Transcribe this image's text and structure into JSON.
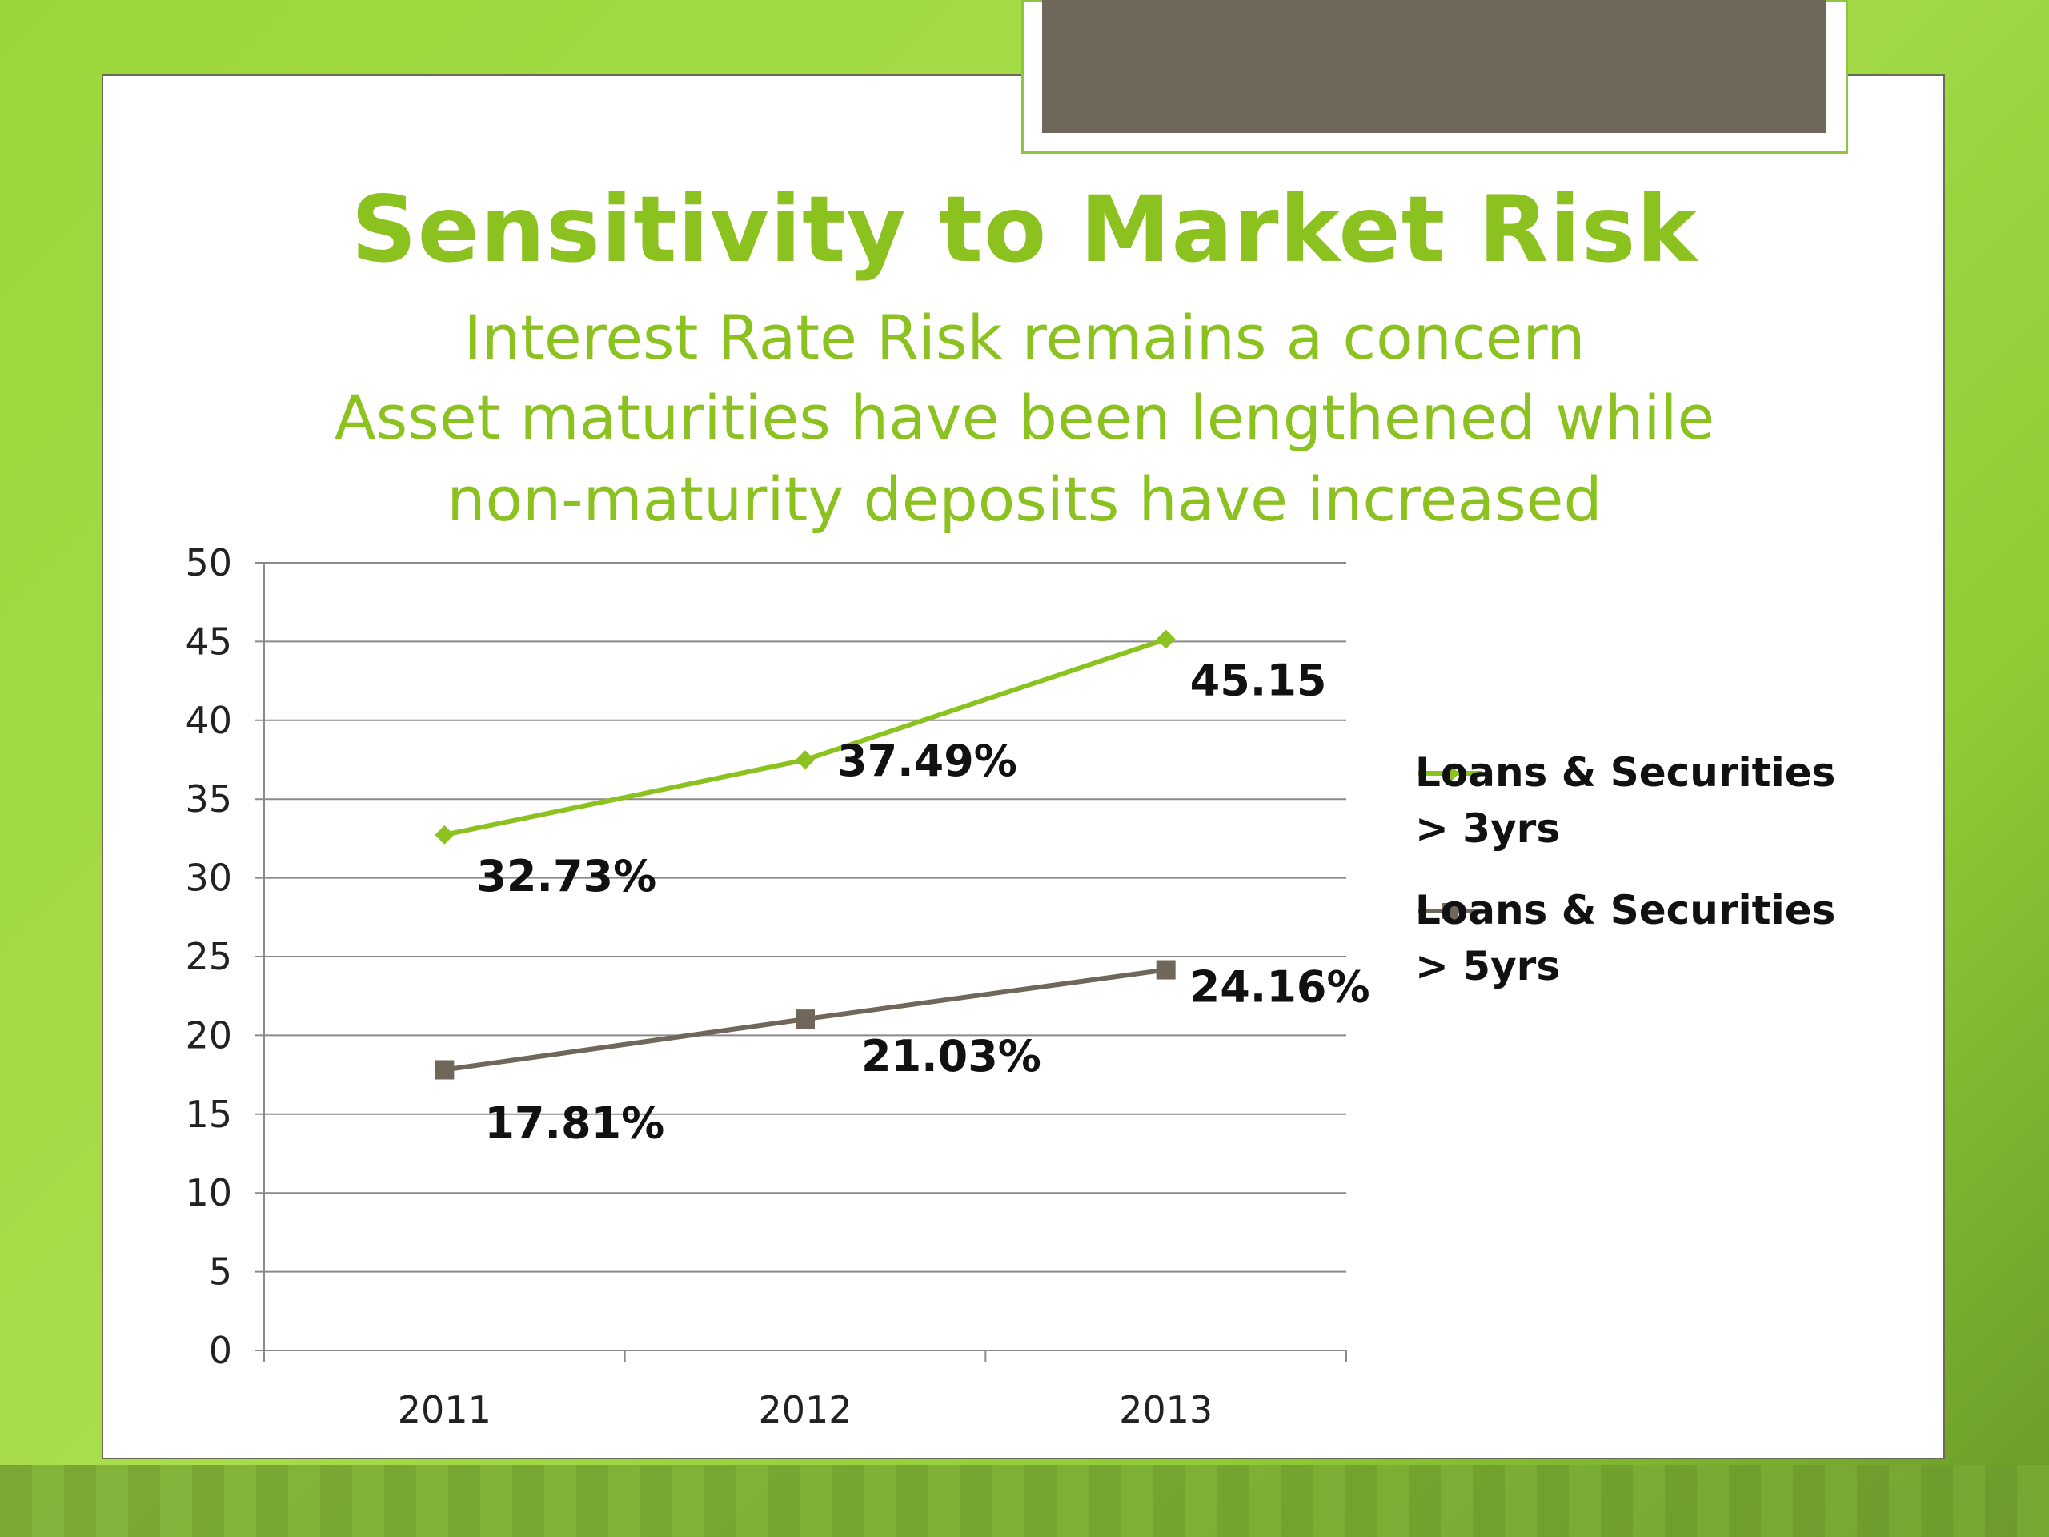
{
  "slide": {
    "title": "Sensitivity to Market Risk",
    "subtitle_lines": [
      "Interest Rate Risk remains a concern",
      "Asset maturities have been lengthened while",
      "non-maturity deposits have increased"
    ]
  },
  "colors": {
    "accent": "#8cc21f",
    "series2": "#6f675a",
    "tab": "#6f675a"
  },
  "chart_data": {
    "type": "line",
    "categories": [
      "2011",
      "2012",
      "2013"
    ],
    "ylim": [
      0,
      50
    ],
    "yticks": [
      0,
      5,
      10,
      15,
      20,
      25,
      30,
      35,
      40,
      45,
      50
    ],
    "grid": true,
    "legend_position": "right",
    "series": [
      {
        "name": "Loans & Securities > 3yrs",
        "name_lines": [
          "Loans & Securities",
          "> 3yrs"
        ],
        "values": [
          32.73,
          37.49,
          45.15
        ],
        "labels": [
          "32.73%",
          "37.49%",
          "45.15"
        ],
        "color": "#8cc21f",
        "marker": "diamond"
      },
      {
        "name": "Loans & Securities > 5yrs",
        "name_lines": [
          "Loans & Securities",
          "> 5yrs"
        ],
        "values": [
          17.81,
          21.03,
          24.16
        ],
        "labels": [
          "17.81%",
          "21.03%",
          "24.16%"
        ],
        "color": "#6f675a",
        "marker": "square"
      }
    ]
  }
}
